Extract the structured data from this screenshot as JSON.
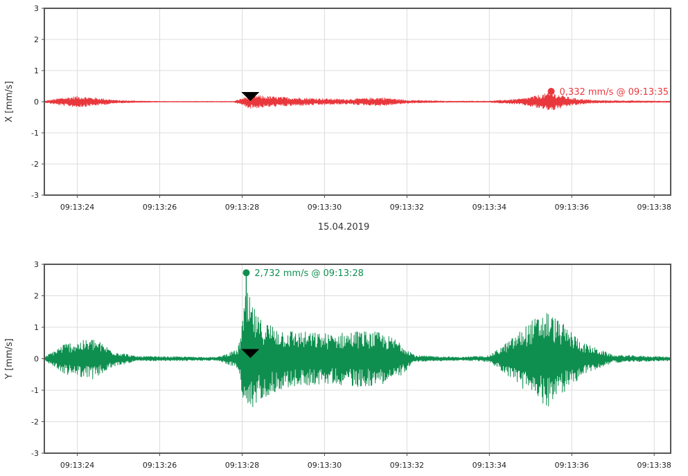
{
  "chart_data": [
    {
      "type": "line",
      "ylabel": "X [mm/s]",
      "ylim": [
        -3,
        3
      ],
      "yticks": [
        3,
        2,
        1,
        0,
        -1,
        -2,
        -3
      ],
      "xlim": [
        "09:13:23.2",
        "09:13:38.4"
      ],
      "xticks": [
        "09:13:24",
        "09:13:26",
        "09:13:28",
        "09:13:30",
        "09:13:32",
        "09:13:34",
        "09:13:36",
        "09:13:38"
      ],
      "date": "15.04.2019",
      "color": "#e8383d",
      "grid": true,
      "trigger_marker_time": "09:13:28.2",
      "peak": {
        "label": "0,332 mm/s @ 09:13:35",
        "time": "09:13:35.5",
        "value": 0.332
      },
      "envelope": [
        {
          "time": "09:13:23.2",
          "amp": 0.02
        },
        {
          "time": "09:13:23.6",
          "amp": 0.12
        },
        {
          "time": "09:13:24.0",
          "amp": 0.18
        },
        {
          "time": "09:13:24.5",
          "amp": 0.12
        },
        {
          "time": "09:13:25.0",
          "amp": 0.04
        },
        {
          "time": "09:13:26.0",
          "amp": 0.01
        },
        {
          "time": "09:13:27.8",
          "amp": 0.01
        },
        {
          "time": "09:13:28.2",
          "amp": 0.22
        },
        {
          "time": "09:13:28.8",
          "amp": 0.16
        },
        {
          "time": "09:13:29.6",
          "amp": 0.12
        },
        {
          "time": "09:13:30.5",
          "amp": 0.08
        },
        {
          "time": "09:13:31.4",
          "amp": 0.14
        },
        {
          "time": "09:13:32.0",
          "amp": 0.05
        },
        {
          "time": "09:13:33.0",
          "amp": 0.02
        },
        {
          "time": "09:13:34.0",
          "amp": 0.02
        },
        {
          "time": "09:13:34.8",
          "amp": 0.1
        },
        {
          "time": "09:13:35.5",
          "amp": 0.3
        },
        {
          "time": "09:13:36.0",
          "amp": 0.12
        },
        {
          "time": "09:13:36.6",
          "amp": 0.04
        },
        {
          "time": "09:13:38.4",
          "amp": 0.02
        }
      ]
    },
    {
      "type": "line",
      "ylabel": "Y [mm/s]",
      "ylim": [
        -3,
        3
      ],
      "yticks": [
        3,
        2,
        1,
        0,
        -1,
        -2,
        -3
      ],
      "xlim": [
        "09:13:23.2",
        "09:13:38.4"
      ],
      "xticks": [
        "09:13:24",
        "09:13:26",
        "09:13:28",
        "09:13:30",
        "09:13:32",
        "09:13:34",
        "09:13:36",
        "09:13:38"
      ],
      "color": "#0f8f4f",
      "grid": true,
      "trigger_marker_time": "09:13:28.2",
      "peak": {
        "label": "2,732 mm/s @ 09:13:28",
        "time": "09:13:28.1",
        "value": 2.732
      },
      "envelope": [
        {
          "time": "09:13:23.2",
          "amp": 0.05
        },
        {
          "time": "09:13:23.7",
          "amp": 0.5
        },
        {
          "time": "09:13:24.0",
          "amp": 0.55
        },
        {
          "time": "09:13:24.4",
          "amp": 0.65
        },
        {
          "time": "09:13:24.9",
          "amp": 0.25
        },
        {
          "time": "09:13:25.4",
          "amp": 0.08
        },
        {
          "time": "09:13:27.4",
          "amp": 0.05
        },
        {
          "time": "09:13:27.9",
          "amp": 0.3
        },
        {
          "time": "09:13:28.1",
          "amp": 2.2
        },
        {
          "time": "09:13:28.4",
          "amp": 1.3
        },
        {
          "time": "09:13:29.0",
          "amp": 0.95
        },
        {
          "time": "09:13:29.6",
          "amp": 0.85
        },
        {
          "time": "09:13:30.2",
          "amp": 0.8
        },
        {
          "time": "09:13:30.8",
          "amp": 0.9
        },
        {
          "time": "09:13:31.3",
          "amp": 0.85
        },
        {
          "time": "09:13:31.8",
          "amp": 0.6
        },
        {
          "time": "09:13:32.2",
          "amp": 0.1
        },
        {
          "time": "09:13:33.3",
          "amp": 0.05
        },
        {
          "time": "09:13:34.0",
          "amp": 0.1
        },
        {
          "time": "09:13:34.5",
          "amp": 0.6
        },
        {
          "time": "09:13:35.0",
          "amp": 1.2
        },
        {
          "time": "09:13:35.4",
          "amp": 1.55
        },
        {
          "time": "09:13:35.8",
          "amp": 1.1
        },
        {
          "time": "09:13:36.3",
          "amp": 0.5
        },
        {
          "time": "09:13:37.0",
          "amp": 0.12
        },
        {
          "time": "09:13:38.4",
          "amp": 0.06
        }
      ]
    }
  ]
}
